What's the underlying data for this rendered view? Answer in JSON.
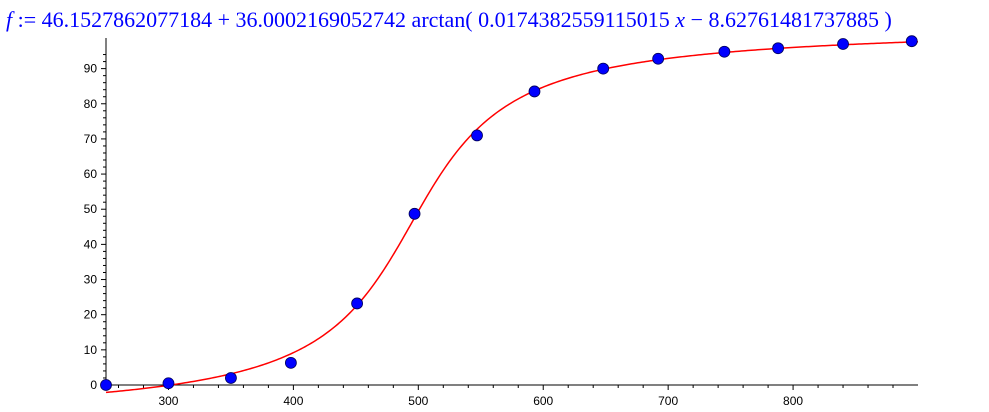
{
  "equation": {
    "fname": "f",
    "assign": " := 46.1527862077184 + 36.0002169052742 arctan( 0.0174382559115015 ",
    "var": "x",
    "tail": " − 8.62761481737885 )"
  },
  "chart_data": {
    "type": "scatter",
    "title": "",
    "xlabel": "",
    "ylabel": "",
    "xlim": [
      250,
      900
    ],
    "ylim": [
      0,
      97
    ],
    "x_ticks": [
      300,
      400,
      500,
      600,
      700,
      800
    ],
    "y_ticks": [
      0,
      10,
      20,
      30,
      40,
      50,
      60,
      70,
      80,
      90
    ],
    "fit_color": "#ff0000",
    "point_color": "#0000ff",
    "fit": {
      "a": 46.1527862077184,
      "b": 36.0002169052742,
      "c": 0.0174382559115015,
      "d": 8.62761481737885
    },
    "points": [
      [
        250,
        0
      ],
      [
        300,
        0.5
      ],
      [
        350,
        2
      ],
      [
        398,
        6.3
      ],
      [
        451,
        23.2
      ],
      [
        497,
        48.7
      ],
      [
        547,
        71
      ],
      [
        593,
        83.5
      ],
      [
        648,
        90
      ],
      [
        692,
        92.8
      ],
      [
        745,
        94.8
      ],
      [
        788,
        95.8
      ],
      [
        840,
        97
      ],
      [
        895,
        97.8
      ]
    ]
  }
}
